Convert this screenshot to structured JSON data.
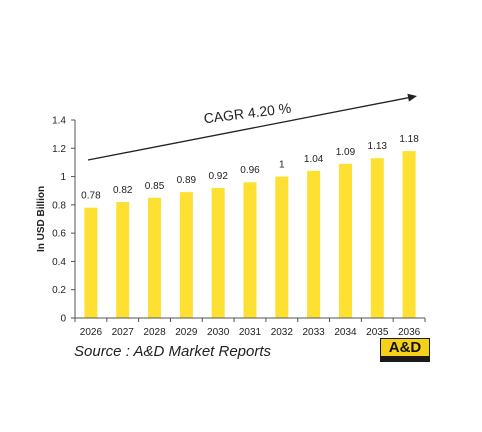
{
  "chart_data": {
    "type": "bar",
    "categories": [
      "2026",
      "2027",
      "2028",
      "2029",
      "2030",
      "2031",
      "2032",
      "2033",
      "2034",
      "2035",
      "2036"
    ],
    "values": [
      0.78,
      0.82,
      0.85,
      0.89,
      0.92,
      0.96,
      1,
      1.04,
      1.09,
      1.13,
      1.18
    ],
    "value_labels": [
      "0.78",
      "0.82",
      "0.85",
      "0.89",
      "0.92",
      "0.96",
      "1",
      "1.04",
      "1.09",
      "1.13",
      "1.18"
    ],
    "ylabel": "In USD Billion",
    "ylim": [
      0,
      1.4
    ],
    "yticks": [
      0,
      0.2,
      0.4,
      0.6,
      0.8,
      1,
      1.2,
      1.4
    ],
    "ytick_labels": [
      "0",
      "0.2",
      "0.4",
      "0.6",
      "0.8",
      "1",
      "1.2",
      "1.4"
    ],
    "annotation": "CAGR  4.20 %",
    "grid": false,
    "colors": {
      "bar": "#fde031",
      "arrow": "#222222"
    }
  },
  "source_text": "Source : A&D Market Reports",
  "logo_text": "A&D"
}
